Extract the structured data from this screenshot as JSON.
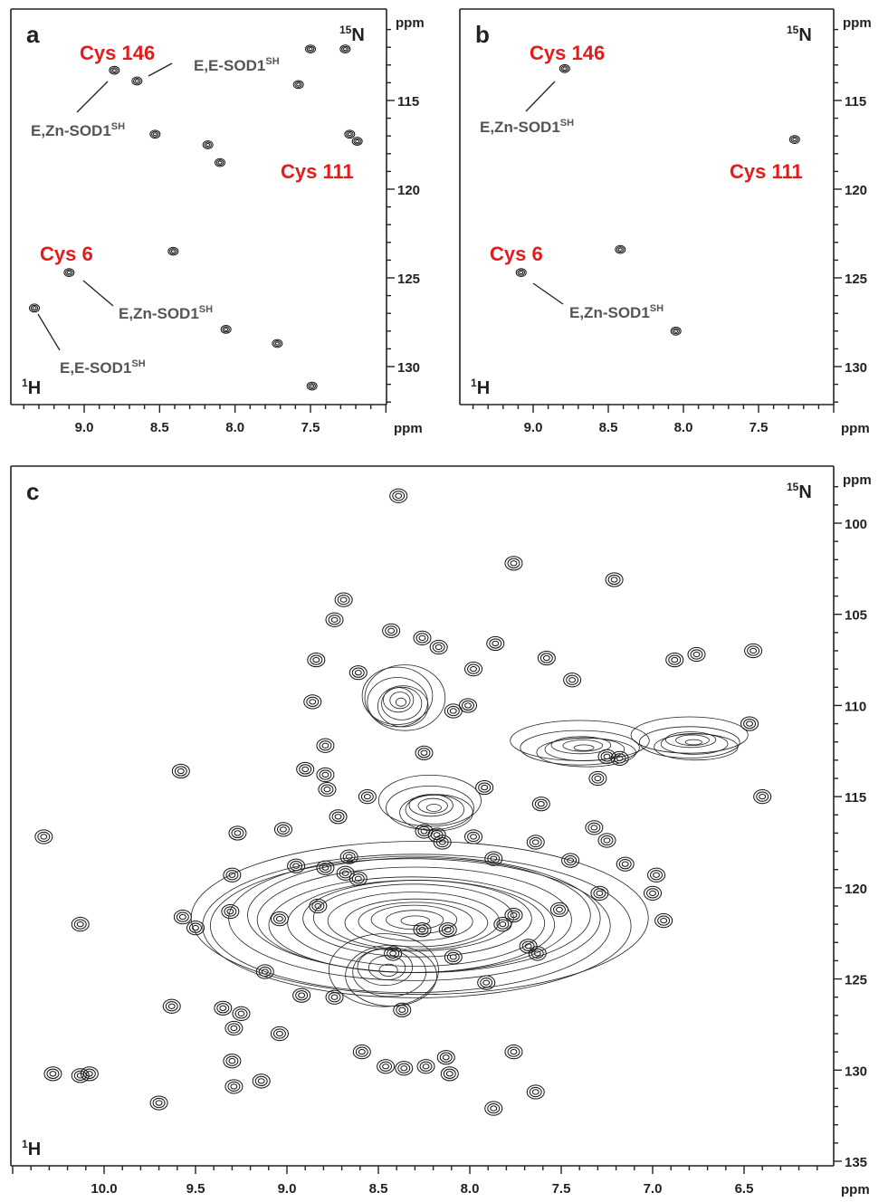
{
  "panels": [
    {
      "id": "a",
      "letter": "a",
      "h_unit": "ppm",
      "n_unit": "ppm",
      "h_label": "H",
      "h_sup": "1",
      "n_label": "N",
      "n_sup": "15",
      "labels": [
        {
          "key": "cys146",
          "text": "Cys 146",
          "kind": "cys"
        },
        {
          "key": "cys111",
          "text": "Cys 111",
          "kind": "cys"
        },
        {
          "key": "cys6",
          "text": "Cys 6",
          "kind": "cys"
        },
        {
          "key": "ez146",
          "text": "E,Zn-SOD1",
          "sup": "SH",
          "kind": "species"
        },
        {
          "key": "ee146",
          "text": "E,E-SOD1",
          "sup": "SH",
          "kind": "species"
        },
        {
          "key": "ez6",
          "text": "E,Zn-SOD1",
          "sup": "SH",
          "kind": "species"
        },
        {
          "key": "ee6",
          "text": "E,E-SOD1",
          "sup": "SH",
          "kind": "species"
        }
      ]
    },
    {
      "id": "b",
      "letter": "b",
      "h_unit": "ppm",
      "n_unit": "ppm",
      "h_label": "H",
      "h_sup": "1",
      "n_label": "N",
      "n_sup": "15",
      "labels": [
        {
          "key": "cys146",
          "text": "Cys 146",
          "kind": "cys"
        },
        {
          "key": "cys111",
          "text": "Cys 111",
          "kind": "cys"
        },
        {
          "key": "cys6",
          "text": "Cys 6",
          "kind": "cys"
        },
        {
          "key": "ez146",
          "text": "E,Zn-SOD1",
          "sup": "SH",
          "kind": "species"
        },
        {
          "key": "ez6",
          "text": "E,Zn-SOD1",
          "sup": "SH",
          "kind": "species"
        }
      ]
    },
    {
      "id": "c",
      "letter": "c",
      "h_unit": "ppm",
      "n_unit": "ppm",
      "h_label": "H",
      "h_sup": "1",
      "n_label": "N",
      "n_sup": "15",
      "labels": []
    }
  ],
  "colors": {
    "cys_label": "#e31b1b",
    "species_label": "#555555",
    "contour": "#111111"
  },
  "chart_data": [
    {
      "type": "scatter",
      "panel": "a",
      "description_note": "",
      "x_axis": {
        "label": "1H",
        "unit": "ppm",
        "range": [
          9.5,
          7.0
        ],
        "reversed": true,
        "ticks": [
          9.0,
          8.5,
          8.0,
          7.5
        ]
      },
      "y_axis": {
        "label": "15N",
        "unit": "ppm",
        "range": [
          110.5,
          132.5
        ],
        "reversed": true,
        "ticks": [
          115,
          120,
          125,
          130
        ]
      },
      "series": [
        {
          "name": "",
          "points": [
            {
              "x": 8.8,
              "y": 113.3
            },
            {
              "x": 8.65,
              "y": 113.9
            },
            {
              "x": 8.53,
              "y": 116.9
            },
            {
              "x": 8.18,
              "y": 117.5
            },
            {
              "x": 8.1,
              "y": 118.5
            },
            {
              "x": 7.58,
              "y": 114.1
            },
            {
              "x": 7.5,
              "y": 112.1
            },
            {
              "x": 7.27,
              "y": 112.1
            },
            {
              "x": 7.24,
              "y": 116.9
            },
            {
              "x": 7.19,
              "y": 117.3
            },
            {
              "x": 8.41,
              "y": 123.5
            },
            {
              "x": 9.1,
              "y": 124.7
            },
            {
              "x": 9.33,
              "y": 126.7
            },
            {
              "x": 8.06,
              "y": 127.9
            },
            {
              "x": 7.72,
              "y": 128.7
            },
            {
              "x": 7.49,
              "y": 131.1
            }
          ]
        }
      ]
    },
    {
      "type": "scatter",
      "panel": "b",
      "x_axis": {
        "label": "1H",
        "unit": "ppm",
        "range": [
          9.5,
          7.0
        ],
        "reversed": true,
        "ticks": [
          9.0,
          8.5,
          8.0,
          7.5
        ]
      },
      "y_axis": {
        "label": "15N",
        "unit": "ppm",
        "range": [
          110.5,
          132.5
        ],
        "reversed": true,
        "ticks": [
          115,
          120,
          125,
          130
        ]
      },
      "series": [
        {
          "name": "",
          "points": [
            {
              "x": 8.79,
              "y": 113.2
            },
            {
              "x": 7.26,
              "y": 117.2
            },
            {
              "x": 8.42,
              "y": 123.4
            },
            {
              "x": 9.08,
              "y": 124.7
            },
            {
              "x": 8.05,
              "y": 128.0
            }
          ]
        }
      ]
    },
    {
      "type": "scatter",
      "panel": "c",
      "x_axis": {
        "label": "1H",
        "unit": "ppm",
        "range": [
          10.5,
          6.0
        ],
        "reversed": true,
        "ticks": [
          10.0,
          9.5,
          9.0,
          8.5,
          8.0,
          7.5,
          7.0,
          6.5
        ]
      },
      "y_axis": {
        "label": "15N",
        "unit": "ppm",
        "range": [
          97.5,
          135
        ],
        "reversed": true,
        "ticks": [
          100,
          105,
          110,
          115,
          120,
          125,
          130,
          135
        ]
      },
      "series": [
        {
          "name": "",
          "points": [
            {
              "x": 8.39,
              "y": 98.5
            },
            {
              "x": 7.76,
              "y": 102.2
            },
            {
              "x": 7.21,
              "y": 103.1
            },
            {
              "x": 8.69,
              "y": 104.2
            },
            {
              "x": 8.74,
              "y": 105.3
            },
            {
              "x": 8.43,
              "y": 105.9
            },
            {
              "x": 8.26,
              "y": 106.3
            },
            {
              "x": 8.17,
              "y": 106.8
            },
            {
              "x": 7.86,
              "y": 106.6
            },
            {
              "x": 8.84,
              "y": 107.5
            },
            {
              "x": 7.58,
              "y": 107.4
            },
            {
              "x": 6.88,
              "y": 107.5
            },
            {
              "x": 6.76,
              "y": 107.2
            },
            {
              "x": 6.45,
              "y": 107.0
            },
            {
              "x": 8.61,
              "y": 108.2
            },
            {
              "x": 7.98,
              "y": 108.0
            },
            {
              "x": 8.01,
              "y": 110.0
            },
            {
              "x": 8.09,
              "y": 110.3
            },
            {
              "x": 7.44,
              "y": 108.6
            },
            {
              "x": 8.86,
              "y": 109.8
            },
            {
              "x": 8.79,
              "y": 112.2
            },
            {
              "x": 8.25,
              "y": 112.6
            },
            {
              "x": 6.47,
              "y": 111.0
            },
            {
              "x": 7.18,
              "y": 112.9
            },
            {
              "x": 7.25,
              "y": 112.8
            },
            {
              "x": 8.9,
              "y": 113.5
            },
            {
              "x": 8.79,
              "y": 113.8
            },
            {
              "x": 9.58,
              "y": 113.6
            },
            {
              "x": 7.3,
              "y": 114.0
            },
            {
              "x": 8.78,
              "y": 114.6
            },
            {
              "x": 8.56,
              "y": 115.0
            },
            {
              "x": 7.92,
              "y": 114.5
            },
            {
              "x": 7.61,
              "y": 115.4
            },
            {
              "x": 6.4,
              "y": 115.0
            },
            {
              "x": 8.72,
              "y": 116.1
            },
            {
              "x": 8.25,
              "y": 116.9
            },
            {
              "x": 8.18,
              "y": 117.1
            },
            {
              "x": 8.15,
              "y": 117.5
            },
            {
              "x": 7.98,
              "y": 117.2
            },
            {
              "x": 7.32,
              "y": 116.7
            },
            {
              "x": 7.25,
              "y": 117.4
            },
            {
              "x": 10.33,
              "y": 117.2
            },
            {
              "x": 9.27,
              "y": 117.0
            },
            {
              "x": 9.02,
              "y": 116.8
            },
            {
              "x": 8.66,
              "y": 118.3
            },
            {
              "x": 7.64,
              "y": 117.5
            },
            {
              "x": 7.45,
              "y": 118.5
            },
            {
              "x": 7.15,
              "y": 118.7
            },
            {
              "x": 6.98,
              "y": 119.3
            },
            {
              "x": 8.95,
              "y": 118.8
            },
            {
              "x": 8.79,
              "y": 118.9
            },
            {
              "x": 8.68,
              "y": 119.2
            },
            {
              "x": 8.61,
              "y": 119.5
            },
            {
              "x": 7.87,
              "y": 118.4
            },
            {
              "x": 7.29,
              "y": 120.3
            },
            {
              "x": 7.0,
              "y": 120.3
            },
            {
              "x": 9.3,
              "y": 119.3
            },
            {
              "x": 9.31,
              "y": 121.3
            },
            {
              "x": 8.83,
              "y": 121.0
            },
            {
              "x": 7.76,
              "y": 121.5
            },
            {
              "x": 7.82,
              "y": 122.0
            },
            {
              "x": 7.51,
              "y": 121.2
            },
            {
              "x": 6.94,
              "y": 121.8
            },
            {
              "x": 9.57,
              "y": 121.6
            },
            {
              "x": 9.5,
              "y": 122.2
            },
            {
              "x": 10.13,
              "y": 122.0
            },
            {
              "x": 9.04,
              "y": 121.7
            },
            {
              "x": 8.26,
              "y": 122.3
            },
            {
              "x": 8.12,
              "y": 122.3
            },
            {
              "x": 7.68,
              "y": 123.2
            },
            {
              "x": 7.63,
              "y": 123.6
            },
            {
              "x": 9.12,
              "y": 124.6
            },
            {
              "x": 8.42,
              "y": 123.6
            },
            {
              "x": 8.09,
              "y": 123.8
            },
            {
              "x": 7.91,
              "y": 125.2
            },
            {
              "x": 8.74,
              "y": 126.0
            },
            {
              "x": 9.35,
              "y": 126.6
            },
            {
              "x": 9.25,
              "y": 126.9
            },
            {
              "x": 9.29,
              "y": 127.7
            },
            {
              "x": 9.63,
              "y": 126.5
            },
            {
              "x": 8.92,
              "y": 125.9
            },
            {
              "x": 9.04,
              "y": 128.0
            },
            {
              "x": 8.37,
              "y": 126.7
            },
            {
              "x": 8.59,
              "y": 129.0
            },
            {
              "x": 8.46,
              "y": 129.8
            },
            {
              "x": 8.36,
              "y": 129.9
            },
            {
              "x": 8.24,
              "y": 129.8
            },
            {
              "x": 8.13,
              "y": 129.3
            },
            {
              "x": 8.11,
              "y": 130.2
            },
            {
              "x": 7.76,
              "y": 129.0
            },
            {
              "x": 9.3,
              "y": 129.5
            },
            {
              "x": 9.29,
              "y": 130.9
            },
            {
              "x": 9.14,
              "y": 130.6
            },
            {
              "x": 10.28,
              "y": 130.2
            },
            {
              "x": 10.13,
              "y": 130.3
            },
            {
              "x": 10.08,
              "y": 130.2
            },
            {
              "x": 9.7,
              "y": 131.8
            },
            {
              "x": 7.64,
              "y": 131.2
            },
            {
              "x": 7.87,
              "y": 132.1
            }
          ]
        }
      ]
    }
  ]
}
